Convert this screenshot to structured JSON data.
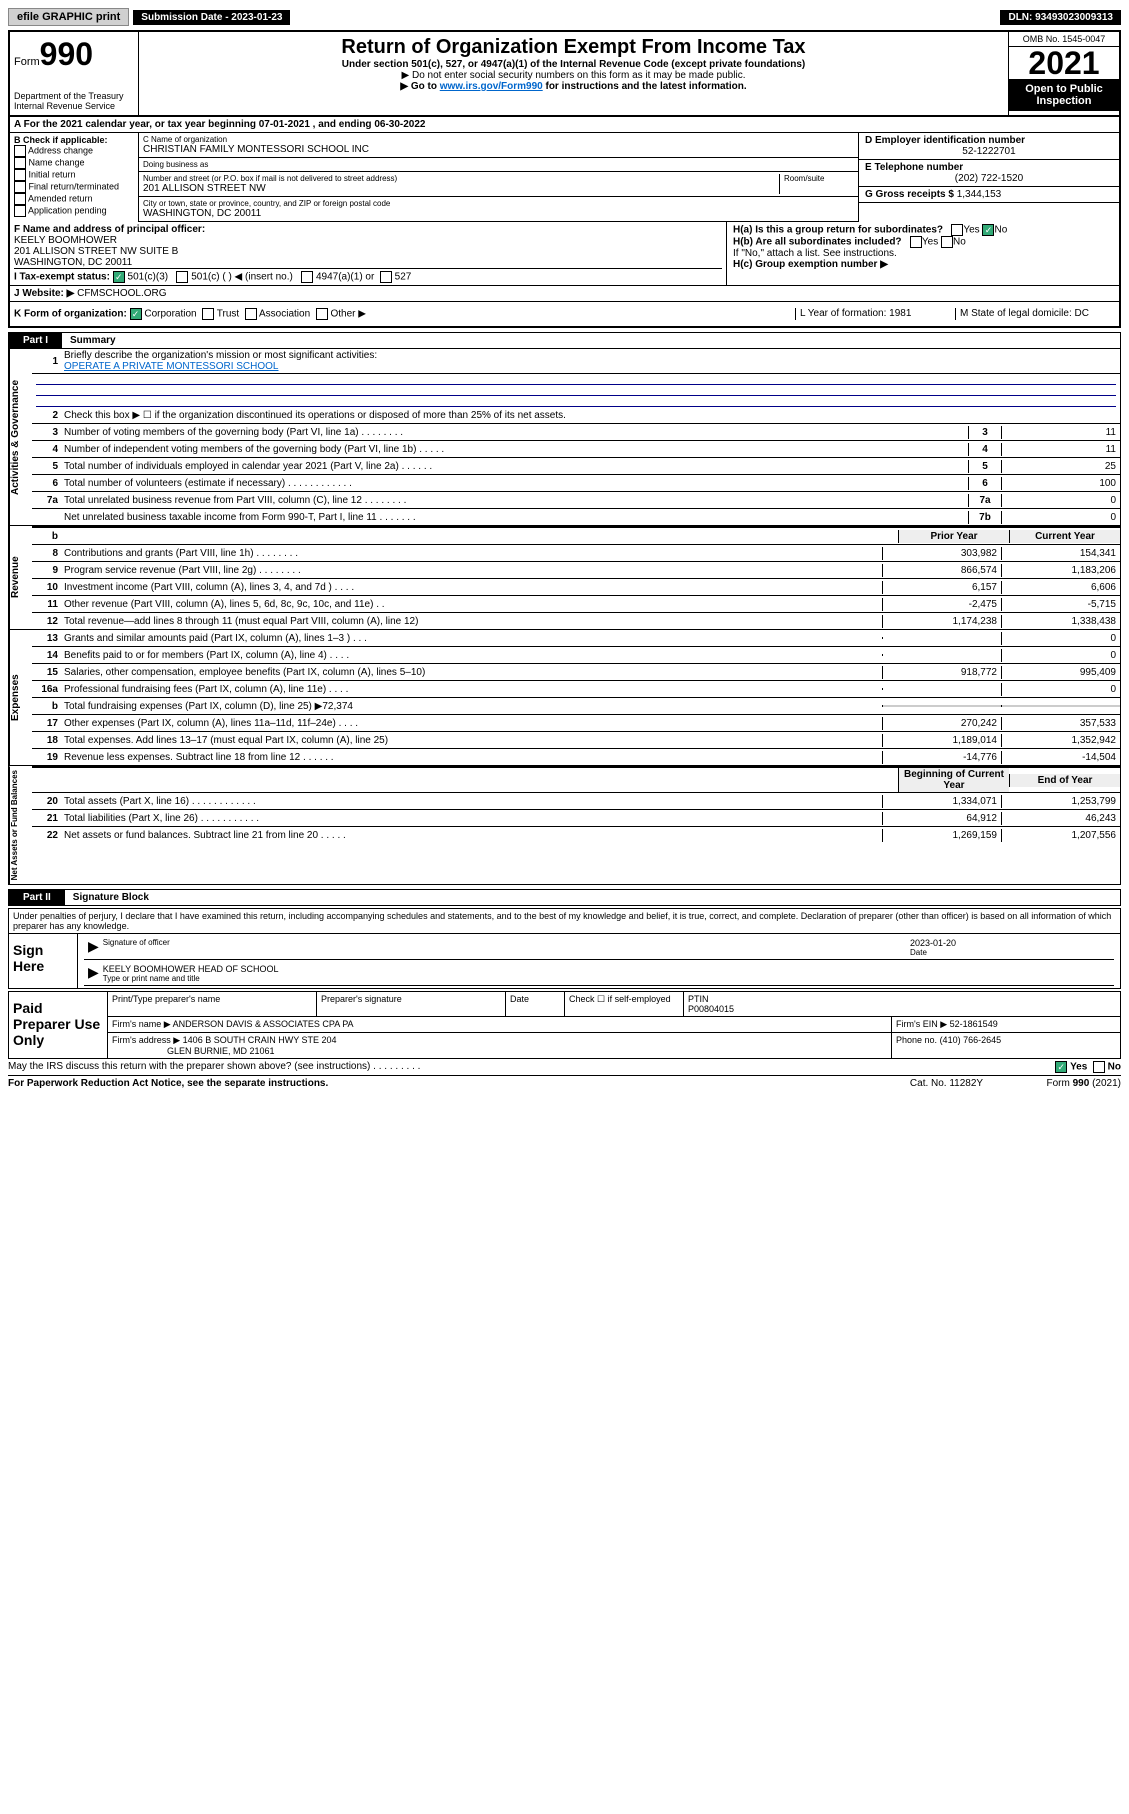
{
  "topbar": {
    "efile": "efile GRAPHIC print",
    "sub_label": "Submission Date - 2023-01-23",
    "dln": "DLN: 93493023009313"
  },
  "header": {
    "form_prefix": "Form",
    "form_no": "990",
    "dept": "Department of the Treasury\nInternal Revenue Service",
    "title": "Return of Organization Exempt From Income Tax",
    "sub": "Under section 501(c), 527, or 4947(a)(1) of the Internal Revenue Code (except private foundations)",
    "note1": "▶ Do not enter social security numbers on this form as it may be made public.",
    "note2_pre": "▶ Go to ",
    "note2_link": "www.irs.gov/Form990",
    "note2_post": " for instructions and the latest information.",
    "omb": "OMB No. 1545-0047",
    "year": "2021",
    "open": "Open to Public Inspection"
  },
  "rowA": "A For the 2021 calendar year, or tax year beginning 07-01-2021  , and ending 06-30-2022",
  "B": {
    "label": "B Check if applicable:",
    "opts": [
      "Address change",
      "Name change",
      "Initial return",
      "Final return/terminated",
      "Amended return",
      "Application pending"
    ]
  },
  "C": {
    "name_label": "C Name of organization",
    "name": "CHRISTIAN FAMILY MONTESSORI SCHOOL INC",
    "dba_label": "Doing business as",
    "dba": "",
    "street_label": "Number and street (or P.O. box if mail is not delivered to street address)",
    "room_label": "Room/suite",
    "street": "201 ALLISON STREET NW",
    "city_label": "City or town, state or province, country, and ZIP or foreign postal code",
    "city": "WASHINGTON, DC  20011"
  },
  "D": {
    "label": "D Employer identification number",
    "value": "52-1222701"
  },
  "E": {
    "label": "E Telephone number",
    "value": "(202) 722-1520"
  },
  "G": {
    "label": "G Gross receipts $",
    "value": "1,344,153"
  },
  "F": {
    "label": "F  Name and address of principal officer:",
    "name": "KEELY BOOMHOWER",
    "addr1": "201 ALLISON STREET NW SUITE B",
    "addr2": "WASHINGTON, DC  20011"
  },
  "H": {
    "a": "H(a)  Is this a group return for subordinates?",
    "a_yes": "Yes",
    "a_no": "No",
    "b": "H(b)  Are all subordinates included?",
    "b_note": "If \"No,\" attach a list. See instructions.",
    "c": "H(c)  Group exemption number ▶"
  },
  "I": {
    "label": "I   Tax-exempt status:",
    "o1": "501(c)(3)",
    "o2": "501(c) (   ) ◀ (insert no.)",
    "o3": "4947(a)(1) or",
    "o4": "527"
  },
  "J": {
    "label": "J   Website: ▶",
    "value": "CFMSCHOOL.ORG"
  },
  "K": {
    "label": "K Form of organization:",
    "opts": [
      "Corporation",
      "Trust",
      "Association",
      "Other ▶"
    ],
    "L": "L Year of formation: 1981",
    "M": "M State of legal domicile: DC"
  },
  "part1": {
    "tag": "Part I",
    "txt": "Summary"
  },
  "summary": {
    "gov": {
      "vtab": "Activities & Governance",
      "l1": "Briefly describe the organization's mission or most significant activities:",
      "l1v": "OPERATE A PRIVATE MONTESSORI SCHOOL",
      "l2": "Check this box ▶ ☐  if the organization discontinued its operations or disposed of more than 25% of its net assets.",
      "rows": [
        {
          "n": "3",
          "d": "Number of voting members of the governing body (Part VI, line 1a)  .    .    .    .    .    .    .    .",
          "b": "3",
          "v": "11"
        },
        {
          "n": "4",
          "d": "Number of independent voting members of the governing body (Part VI, line 1b)  .    .    .    .    .",
          "b": "4",
          "v": "11"
        },
        {
          "n": "5",
          "d": "Total number of individuals employed in calendar year 2021 (Part V, line 2a)  .    .    .    .    .    .",
          "b": "5",
          "v": "25"
        },
        {
          "n": "6",
          "d": "Total number of volunteers (estimate if necessary)  .    .    .    .    .    .    .    .    .    .    .    .",
          "b": "6",
          "v": "100"
        },
        {
          "n": "7a",
          "d": "Total unrelated business revenue from Part VIII, column (C), line 12  .    .    .    .    .    .    .    .",
          "b": "7a",
          "v": "0"
        },
        {
          "n": "",
          "d": "Net unrelated business taxable income from Form 990-T, Part I, line 11  .    .    .    .    .    .    .",
          "b": "7b",
          "v": "0"
        }
      ]
    },
    "cols": {
      "prior": "Prior Year",
      "current": "Current Year",
      "boy": "Beginning of Current Year",
      "eoy": "End of Year"
    },
    "rev": {
      "vtab": "Revenue",
      "rows": [
        {
          "n": "8",
          "d": "Contributions and grants (Part VIII, line 1h)  .    .    .    .    .    .    .    .",
          "p": "303,982",
          "c": "154,341"
        },
        {
          "n": "9",
          "d": "Program service revenue (Part VIII, line 2g)  .    .    .    .    .    .    .    .",
          "p": "866,574",
          "c": "1,183,206"
        },
        {
          "n": "10",
          "d": "Investment income (Part VIII, column (A), lines 3, 4, and 7d )  .    .    .    .",
          "p": "6,157",
          "c": "6,606"
        },
        {
          "n": "11",
          "d": "Other revenue (Part VIII, column (A), lines 5, 6d, 8c, 9c, 10c, and 11e)  .    .",
          "p": "-2,475",
          "c": "-5,715"
        },
        {
          "n": "12",
          "d": "Total revenue—add lines 8 through 11 (must equal Part VIII, column (A), line 12)",
          "p": "1,174,238",
          "c": "1,338,438"
        }
      ]
    },
    "exp": {
      "vtab": "Expenses",
      "rows": [
        {
          "n": "13",
          "d": "Grants and similar amounts paid (Part IX, column (A), lines 1–3 )  .    .    .",
          "p": "",
          "c": "0"
        },
        {
          "n": "14",
          "d": "Benefits paid to or for members (Part IX, column (A), line 4)  .    .    .    .",
          "p": "",
          "c": "0"
        },
        {
          "n": "15",
          "d": "Salaries, other compensation, employee benefits (Part IX, column (A), lines 5–10)",
          "p": "918,772",
          "c": "995,409"
        },
        {
          "n": "16a",
          "d": "Professional fundraising fees (Part IX, column (A), line 11e)  .    .    .    .",
          "p": "",
          "c": "0"
        },
        {
          "n": "b",
          "d": "Total fundraising expenses (Part IX, column (D), line 25) ▶72,374",
          "p": null,
          "c": null
        },
        {
          "n": "17",
          "d": "Other expenses (Part IX, column (A), lines 11a–11d, 11f–24e)  .    .    .    .",
          "p": "270,242",
          "c": "357,533"
        },
        {
          "n": "18",
          "d": "Total expenses. Add lines 13–17 (must equal Part IX, column (A), line 25)",
          "p": "1,189,014",
          "c": "1,352,942"
        },
        {
          "n": "19",
          "d": "Revenue less expenses. Subtract line 18 from line 12  .    .    .    .    .    .",
          "p": "-14,776",
          "c": "-14,504"
        }
      ]
    },
    "net": {
      "vtab": "Net Assets or Fund Balances",
      "rows": [
        {
          "n": "20",
          "d": "Total assets (Part X, line 16)  .    .    .    .    .    .    .    .    .    .    .    .",
          "p": "1,334,071",
          "c": "1,253,799"
        },
        {
          "n": "21",
          "d": "Total liabilities (Part X, line 26)  .    .    .    .    .    .    .    .    .    .    .",
          "p": "64,912",
          "c": "46,243"
        },
        {
          "n": "22",
          "d": "Net assets or fund balances. Subtract line 21 from line 20  .    .    .    .    .",
          "p": "1,269,159",
          "c": "1,207,556"
        }
      ]
    }
  },
  "part2": {
    "tag": "Part II",
    "txt": "Signature Block"
  },
  "sig": {
    "note": "Under penalties of perjury, I declare that I have examined this return, including accompanying schedules and statements, and to the best of my knowledge and belief, it is true, correct, and complete. Declaration of preparer (other than officer) is based on all information of which preparer has any knowledge.",
    "sign_here": "Sign Here",
    "sig_of_officer": "Signature of officer",
    "date_label": "Date",
    "date": "2023-01-20",
    "name_title": "KEELY BOOMHOWER  HEAD OF SCHOOL",
    "type_label": "Type or print name and title"
  },
  "paid": {
    "label": "Paid Preparer Use Only",
    "h1": "Print/Type preparer's name",
    "h2": "Preparer's signature",
    "h3": "Date",
    "check": "Check ☐ if self-employed",
    "ptin_l": "PTIN",
    "ptin": "P00804015",
    "firm_l": "Firm's name   ▶",
    "firm": "ANDERSON DAVIS & ASSOCIATES CPA PA",
    "ein_l": "Firm's EIN ▶",
    "ein": "52-1861549",
    "addr_l": "Firm's address ▶",
    "addr1": "1406 B SOUTH CRAIN HWY STE 204",
    "addr2": "GLEN BURNIE, MD  21061",
    "phone_l": "Phone no.",
    "phone": "(410) 766-2645"
  },
  "footer": {
    "discuss": "May the IRS discuss this return with the preparer shown above? (see instructions)  .    .    .    .    .    .    .    .    .",
    "yes": "Yes",
    "no": "No",
    "pra": "For Paperwork Reduction Act Notice, see the separate instructions.",
    "cat": "Cat. No. 11282Y",
    "formref": "Form 990 (2021)"
  }
}
